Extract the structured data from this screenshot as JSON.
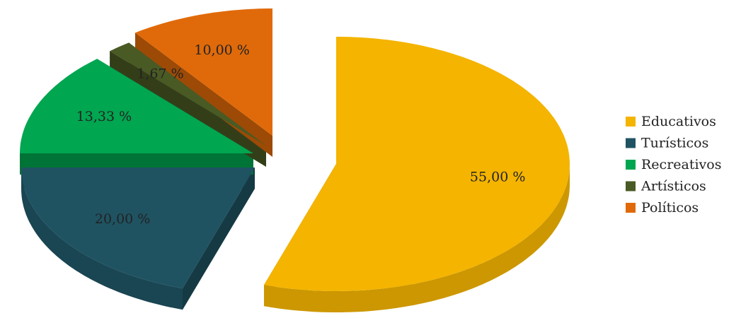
{
  "chart_data": {
    "type": "pie3d",
    "categories": [
      "Educativos",
      "Turísticos",
      "Recreativos",
      "Artísticos",
      "Políticos"
    ],
    "values": [
      55,
      20,
      13.33,
      1.67,
      10
    ],
    "value_labels": [
      "55,00 %",
      "20,00 %",
      "13,33 %",
      "1,67 %",
      "10,00 %"
    ],
    "colors": [
      "#f4b400",
      "#1f5362",
      "#00a650",
      "#4a5a24",
      "#e06a0a"
    ],
    "legend": "right"
  }
}
